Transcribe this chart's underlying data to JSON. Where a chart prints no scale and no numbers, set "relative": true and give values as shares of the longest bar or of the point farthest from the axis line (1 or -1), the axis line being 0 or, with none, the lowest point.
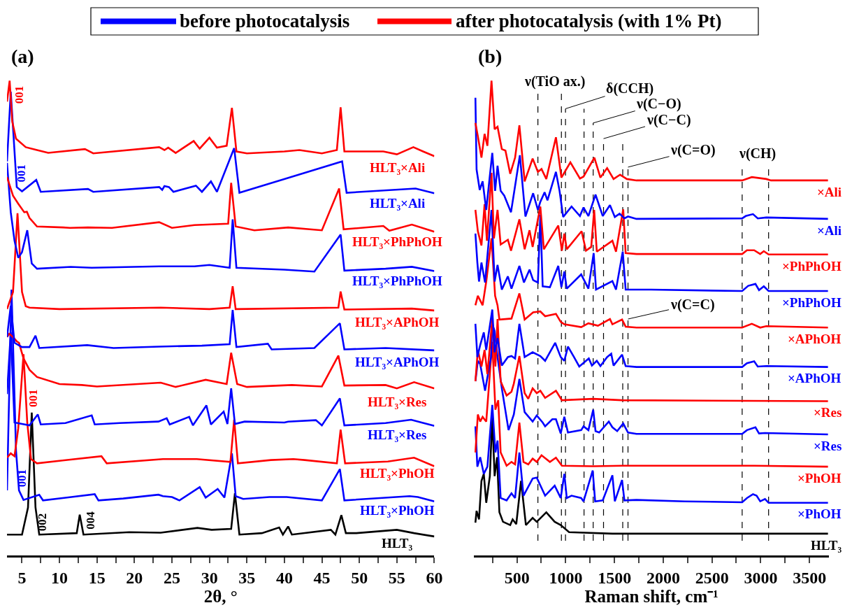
{
  "chart_data": [
    {
      "type": "line",
      "relative": true,
      "xlabel": "2θ, °",
      "xlim": [
        3,
        60
      ],
      "xticks": [
        5,
        {
          "value": 7.5,
          "label": null
        },
        10,
        {
          "value": 12.5,
          "label": null
        },
        15,
        {
          "value": 17.5,
          "label": null
        },
        20,
        {
          "value": 22.5,
          "label": null
        },
        25,
        {
          "value": 27.5,
          "label": null
        },
        30,
        {
          "value": 32.5,
          "label": null
        },
        35,
        {
          "value": 37.5,
          "label": null
        },
        40,
        {
          "value": 42.5,
          "label": null
        },
        45,
        {
          "value": 47.5,
          "label": null
        },
        50,
        {
          "value": 52.5,
          "label": null
        },
        55,
        {
          "value": 57.5,
          "label": null
        },
        60
      ],
      "series": [
        {
          "name": "HLT₃",
          "color": "#000000",
          "x": [
            3.0,
            5,
            5.8,
            6.3,
            6.8,
            7.3,
            12.3,
            12.7,
            13.2,
            19.3,
            23.5,
            28.4,
            30.3,
            32.9,
            33.4,
            34,
            37,
            39.3,
            39.8,
            40.5,
            41,
            46.2,
            46.8,
            47.6,
            48.2,
            49.6,
            55,
            57.3,
            60
          ],
          "values": [
            0.044,
            0.044,
            0.101,
            0.301,
            0.101,
            0.044,
            0.047,
            0.086,
            0.044,
            0.049,
            0.048,
            0.058,
            0.054,
            0.056,
            0.131,
            0.044,
            0.047,
            0.059,
            0.044,
            0.061,
            0.044,
            0.054,
            0.044,
            0.085,
            0.047,
            0.047,
            0.054,
            0.047,
            0.04
          ]
        },
        {
          "name": "HLT₃×PhOH",
          "color": "#0000ff",
          "x": [
            3.0,
            3.6,
            4.2,
            4.6,
            5.2,
            7.3,
            7.8,
            11,
            14.7,
            15.2,
            18.5,
            23.2,
            23.8,
            25,
            26,
            28.7,
            29.5,
            31.1,
            32,
            33.0,
            33.5,
            34.5,
            38,
            40.3,
            45,
            47.4,
            48,
            53.8,
            56.7,
            57.8,
            60
          ],
          "values": [
            0.137,
            0.56,
            0.221,
            0.137,
            0.117,
            0.128,
            0.116,
            0.122,
            0.129,
            0.116,
            0.12,
            0.128,
            0.125,
            0.123,
            0.116,
            0.144,
            0.122,
            0.14,
            0.122,
            0.215,
            0.125,
            0.119,
            0.123,
            0.123,
            0.116,
            0.182,
            0.116,
            0.122,
            0.125,
            0.123,
            0.114
          ]
        },
        {
          "name": "HLT₃×PhOH",
          "color": "#ff0000",
          "x": [
            3.0,
            3.5,
            4.0,
            4.5,
            5.2,
            5.7,
            6.2,
            7,
            10.4,
            15.6,
            16.3,
            23.8,
            28.3,
            32.8,
            33.3,
            33.8,
            38.2,
            41.2,
            42.7,
            47.0,
            47.5,
            48.1,
            53.8,
            57.3,
            60
          ],
          "values": [
            0.206,
            0.215,
            0.209,
            0.268,
            0.424,
            0.28,
            0.203,
            0.194,
            0.2,
            0.209,
            0.194,
            0.203,
            0.203,
            0.197,
            0.286,
            0.194,
            0.201,
            0.203,
            0.201,
            0.194,
            0.265,
            0.194,
            0.198,
            0.206,
            0.188
          ]
        },
        {
          "name": "HLT₃×Res",
          "color": "#0000ff",
          "x": [
            3.0,
            3.5,
            4.0,
            6,
            7.1,
            7.5,
            10.8,
            14.3,
            14.7,
            18,
            23.2,
            24.3,
            24.7,
            27.3,
            27.8,
            29.6,
            30.2,
            31.9,
            32.4,
            32.9,
            33.4,
            34.7,
            40,
            40.5,
            44.2,
            45,
            47.4,
            48,
            53.5,
            56.9,
            58.3,
            60
          ],
          "values": [
            0.34,
            0.47,
            0.28,
            0.274,
            0.297,
            0.276,
            0.279,
            0.295,
            0.276,
            0.279,
            0.282,
            0.289,
            0.276,
            0.292,
            0.274,
            0.316,
            0.276,
            0.303,
            0.277,
            0.352,
            0.277,
            0.282,
            0.28,
            0.282,
            0.285,
            0.274,
            0.331,
            0.274,
            0.279,
            0.286,
            0.28,
            0.273
          ]
        },
        {
          "name": "HLT₃×Res",
          "color": "#ff0000",
          "x": [
            3.0,
            3.3,
            3.8,
            4.3,
            4.6,
            5.2,
            6,
            7,
            10,
            13,
            15,
            23.5,
            25.5,
            29.5,
            32.3,
            32.9,
            33.7,
            35,
            41,
            45,
            47.2,
            48,
            53.5,
            55,
            57.3,
            60
          ],
          "values": [
            0.46,
            0.467,
            0.46,
            0.451,
            0.448,
            0.415,
            0.391,
            0.376,
            0.361,
            0.359,
            0.356,
            0.364,
            0.355,
            0.37,
            0.361,
            0.427,
            0.361,
            0.355,
            0.359,
            0.356,
            0.421,
            0.358,
            0.359,
            0.352,
            0.365,
            0.352
          ]
        },
        {
          "name": "HLT₃×APhOH",
          "color": "#0000ff",
          "x": [
            3.0,
            3.5,
            4.0,
            5,
            6.0,
            6.8,
            7.3,
            13.7,
            17.2,
            23.3,
            29,
            32.7,
            33.1,
            33.6,
            37.8,
            38.3,
            44,
            47.4,
            48,
            53.5,
            60
          ],
          "values": [
            0.46,
            0.526,
            0.448,
            0.439,
            0.439,
            0.463,
            0.437,
            0.443,
            0.437,
            0.44,
            0.442,
            0.445,
            0.517,
            0.439,
            0.446,
            0.434,
            0.437,
            0.489,
            0.434,
            0.437,
            0.432
          ]
        },
        {
          "name": "HLT₃×APhOH",
          "color": "#ff0000",
          "x": [
            3.0,
            3.8,
            4.4,
            5.0,
            5.5,
            6,
            10,
            23.5,
            30,
            32.7,
            33.1,
            33.5,
            47.2,
            47.5,
            48,
            57,
            60
          ],
          "values": [
            0.519,
            0.555,
            0.721,
            0.555,
            0.525,
            0.522,
            0.519,
            0.522,
            0.519,
            0.522,
            0.567,
            0.519,
            0.522,
            0.556,
            0.518,
            0.52,
            0.516
          ]
        },
        {
          "name": "HLT₃×PhPhOH",
          "color": "#0000ff",
          "x": [
            3.0,
            3.5,
            4.0,
            4.5,
            5.0,
            5.7,
            6.3,
            7,
            11.5,
            14.3,
            23.3,
            28,
            30,
            32.7,
            33.1,
            33.6,
            40,
            44,
            47.5,
            48,
            53.5,
            57,
            60
          ],
          "values": [
            0.827,
            0.723,
            0.663,
            0.627,
            0.639,
            0.685,
            0.615,
            0.604,
            0.608,
            0.606,
            0.609,
            0.609,
            0.612,
            0.606,
            0.708,
            0.606,
            0.602,
            0.598,
            0.676,
            0.6,
            0.604,
            0.608,
            0.599
          ]
        },
        {
          "name": "HLT₃×PhPhOH",
          "color": "#ff0000",
          "x": [
            3.0,
            3.8,
            4.5,
            5.3,
            5.65,
            6.0,
            7,
            10.5,
            11.4,
            13.8,
            17,
            23.3,
            25,
            28,
            32.5,
            32.9,
            33.5,
            36,
            40.5,
            45,
            47.3,
            47.9,
            53.2,
            54,
            57,
            60
          ],
          "values": [
            0.797,
            0.758,
            0.741,
            0.723,
            0.724,
            0.711,
            0.693,
            0.691,
            0.69,
            0.691,
            0.69,
            0.702,
            0.69,
            0.696,
            0.699,
            0.785,
            0.693,
            0.685,
            0.691,
            0.685,
            0.773,
            0.687,
            0.694,
            0.684,
            0.697,
            0.682
          ]
        },
        {
          "name": "HLT₃×Ali",
          "color": "#0000ff",
          "x": [
            3.0,
            3.5,
            4.3,
            5,
            6.9,
            7.5,
            13.8,
            14.5,
            23.3,
            23.7,
            24.0,
            24.6,
            25.2,
            28.2,
            29,
            30.2,
            31,
            33.3,
            34,
            47.7,
            48.3,
            57.5,
            60
          ],
          "values": [
            0.83,
            0.977,
            0.776,
            0.767,
            0.791,
            0.766,
            0.772,
            0.766,
            0.776,
            0.77,
            0.778,
            0.776,
            0.766,
            0.779,
            0.766,
            0.788,
            0.766,
            0.858,
            0.764,
            0.83,
            0.764,
            0.773,
            0.763
          ]
        },
        {
          "name": "HLT₃×Ali",
          "color": "#ff0000",
          "x": [
            3.0,
            3.35,
            3.7,
            4.2,
            5.5,
            7.0,
            8.5,
            13.4,
            14.5,
            23.3,
            24.0,
            24.5,
            25.5,
            27.9,
            28.7,
            30.0,
            31.0,
            32.3,
            33.0,
            33.6,
            35,
            40,
            42,
            45,
            47.0,
            47.5,
            48.0,
            53.2,
            55,
            57.2,
            58.5,
            60
          ],
          "values": [
            0.956,
            1.0,
            0.914,
            0.878,
            0.86,
            0.854,
            0.848,
            0.856,
            0.847,
            0.86,
            0.854,
            0.859,
            0.848,
            0.873,
            0.857,
            0.88,
            0.859,
            0.863,
            0.943,
            0.851,
            0.847,
            0.851,
            0.854,
            0.847,
            0.854,
            0.944,
            0.851,
            0.851,
            0.845,
            0.86,
            0.851,
            0.841
          ]
        }
      ],
      "annotations": [
        "(a)",
        "before photocatalysis",
        "after photocatalysis (with 1% Pt)",
        {
          "text": "001",
          "x": 3.35,
          "y": 1.0
        },
        {
          "text": "001",
          "x": 4.3,
          "y": 0.776
        },
        {
          "text": "001",
          "x": 5.2,
          "y": 0.424
        },
        {
          "text": "001",
          "x": 4.6,
          "y": 0.137
        },
        {
          "text": "002",
          "x": 6.8,
          "y": 0.101
        },
        {
          "text": "004",
          "x": 12.7,
          "y": 0.086
        }
      ]
    },
    {
      "type": "line",
      "relative": true,
      "xlabel": "Raman shift, cm⁻¹",
      "xlim": [
        60,
        3700
      ],
      "xticks": [
        {
          "value": 250,
          "label": null
        },
        500,
        {
          "value": 750,
          "label": null
        },
        1000,
        {
          "value": 1250,
          "label": null
        },
        1500,
        {
          "value": 1750,
          "label": null
        },
        2000,
        {
          "value": 2250,
          "label": null
        },
        2500,
        {
          "value": 2750,
          "label": null
        },
        3000,
        {
          "value": 3250,
          "label": null
        },
        3500
      ],
      "series": [
        {
          "name": "HLT₃",
          "color": "#000000",
          "x": [
            74,
            86,
            111,
            136,
            160,
            185,
            222,
            247,
            271,
            296,
            320,
            357,
            431,
            456,
            493,
            542,
            592,
            661,
            703,
            801,
            887,
            949,
            1035,
            1479,
            3690
          ],
          "values": [
            0.069,
            0.094,
            0.076,
            0.157,
            0.172,
            0.111,
            0.167,
            0.292,
            0.167,
            0.207,
            0.091,
            0.071,
            0.064,
            0.076,
            0.066,
            0.157,
            0.064,
            0.079,
            0.071,
            0.091,
            0.071,
            0.064,
            0.049,
            0.046,
            0.046
          ]
        },
        {
          "name": "×PhOH",
          "color": "#0000ff",
          "x": [
            74,
            94,
            123,
            160,
            197,
            247,
            279,
            301,
            333,
            394,
            444,
            481,
            525,
            567,
            661,
            703,
            789,
            887,
            949,
            986,
            1011,
            1060,
            1159,
            1183,
            1277,
            1302,
            1380,
            1479,
            1504,
            1578,
            1602,
            1726,
            2219,
            2810,
            2859,
            2921,
            2958,
            2995,
            3044,
            3081,
            3690
          ],
          "values": [
            0.272,
            0.187,
            0.207,
            0.172,
            0.187,
            0.317,
            0.217,
            0.242,
            0.121,
            0.116,
            0.131,
            0.121,
            0.217,
            0.126,
            0.162,
            0.164,
            0.126,
            0.147,
            0.121,
            0.172,
            0.121,
            0.126,
            0.121,
            0.114,
            0.179,
            0.114,
            0.116,
            0.169,
            0.114,
            0.159,
            0.116,
            0.117,
            0.114,
            0.112,
            0.121,
            0.129,
            0.126,
            0.114,
            0.119,
            0.111,
            0.111
          ]
        },
        {
          "name": "×PhOH",
          "color": "#ff0000",
          "x": [
            74,
            99,
            123,
            148,
            185,
            247,
            279,
            308,
            333,
            394,
            444,
            481,
            525,
            567,
            616,
            661,
            703,
            752,
            838,
            900,
            961,
            1282,
            1578,
            2933,
            3690
          ],
          "values": [
            0.217,
            0.297,
            0.282,
            0.292,
            0.282,
            0.45,
            0.307,
            0.327,
            0.217,
            0.189,
            0.197,
            0.192,
            0.28,
            0.197,
            0.192,
            0.204,
            0.197,
            0.211,
            0.197,
            0.206,
            0.189,
            0.188,
            0.189,
            0.189,
            0.187
          ]
        },
        {
          "name": "×Res",
          "color": "#0000ff",
          "x": [
            74,
            99,
            123,
            173,
            234,
            247,
            271,
            301,
            345,
            414,
            468,
            525,
            579,
            661,
            703,
            764,
            789,
            863,
            900,
            949,
            986,
            1023,
            1159,
            1183,
            1233,
            1282,
            1306,
            1343,
            1442,
            1479,
            1528,
            1590,
            1639,
            1726,
            2810,
            2859,
            2946,
            2983,
            3044,
            3690
          ],
          "values": [
            0.367,
            0.41,
            0.403,
            0.347,
            0.418,
            0.488,
            0.473,
            0.418,
            0.352,
            0.264,
            0.297,
            0.372,
            0.302,
            0.282,
            0.295,
            0.28,
            0.272,
            0.287,
            0.287,
            0.257,
            0.292,
            0.259,
            0.264,
            0.272,
            0.264,
            0.307,
            0.262,
            0.259,
            0.282,
            0.27,
            0.262,
            0.278,
            0.259,
            0.256,
            0.256,
            0.264,
            0.27,
            0.257,
            0.258,
            0.255
          ]
        },
        {
          "name": "×Res",
          "color": "#ff0000",
          "x": [
            74,
            99,
            136,
            168,
            197,
            247,
            279,
            301,
            333,
            394,
            444,
            468,
            525,
            579,
            616,
            661,
            703,
            740,
            789,
            900,
            961,
            1282,
            1578,
            3690
          ],
          "values": [
            0.367,
            0.433,
            0.398,
            0.433,
            0.382,
            0.498,
            0.398,
            0.498,
            0.367,
            0.337,
            0.345,
            0.362,
            0.42,
            0.342,
            0.33,
            0.352,
            0.342,
            0.347,
            0.332,
            0.347,
            0.327,
            0.33,
            0.327,
            0.325
          ]
        },
        {
          "name": "×APhOH",
          "color": "#0000ff",
          "x": [
            74,
            94,
            123,
            160,
            185,
            247,
            271,
            301,
            345,
            407,
            444,
            481,
            525,
            579,
            661,
            740,
            789,
            892,
            949,
            986,
            1023,
            1085,
            1139,
            1196,
            1237,
            1269,
            1319,
            1356,
            1425,
            1467,
            1491,
            1578,
            1615,
            1726,
            2810,
            2859,
            2933,
            2970,
            3057,
            3690
          ],
          "values": [
            0.488,
            0.418,
            0.443,
            0.47,
            0.433,
            0.518,
            0.428,
            0.458,
            0.4,
            0.418,
            0.42,
            0.415,
            0.488,
            0.418,
            0.428,
            0.42,
            0.41,
            0.448,
            0.418,
            0.41,
            0.44,
            0.418,
            0.398,
            0.408,
            0.415,
            0.4,
            0.41,
            0.399,
            0.418,
            0.425,
            0.4,
            0.423,
            0.399,
            0.397,
            0.397,
            0.405,
            0.409,
            0.398,
            0.399,
            0.397
          ]
        },
        {
          "name": "×APhOH",
          "color": "#ff0000",
          "x": [
            74,
            99,
            148,
            185,
            239,
            276,
            301,
            320,
            444,
            525,
            579,
            666,
            740,
            789,
            900,
            949,
            986,
            1159,
            1233,
            1331,
            1454,
            1479,
            1578,
            1615,
            1726,
            2810,
            2909,
            2995,
            3057,
            3690
          ],
          "values": [
            0.527,
            0.547,
            0.527,
            0.577,
            0.668,
            0.547,
            0.527,
            0.497,
            0.499,
            0.552,
            0.497,
            0.512,
            0.514,
            0.504,
            0.509,
            0.492,
            0.487,
            0.481,
            0.489,
            0.484,
            0.498,
            0.487,
            0.497,
            0.482,
            0.48,
            0.48,
            0.488,
            0.48,
            0.483,
            0.48
          ]
        },
        {
          "name": "×PhPhOH",
          "color": "#0000ff",
          "x": [
            74,
            94,
            111,
            136,
            173,
            239,
            271,
            301,
            345,
            407,
            444,
            525,
            572,
            629,
            666,
            715,
            740,
            764,
            838,
            924,
            956,
            986,
            1011,
            1159,
            1233,
            1287,
            1311,
            1479,
            1516,
            1585,
            1615,
            1873,
            2810,
            2872,
            2946,
            2983,
            3032,
            3081,
            3690
          ],
          "values": [
            0.678,
            0.617,
            0.577,
            0.617,
            0.575,
            0.728,
            0.577,
            0.612,
            0.56,
            0.588,
            0.562,
            0.61,
            0.575,
            0.602,
            0.58,
            0.575,
            0.718,
            0.567,
            0.565,
            0.61,
            0.565,
            0.598,
            0.562,
            0.592,
            0.562,
            0.637,
            0.56,
            0.578,
            0.56,
            0.64,
            0.56,
            0.56,
            0.557,
            0.568,
            0.572,
            0.559,
            0.567,
            0.557,
            0.557
          ]
        },
        {
          "name": "×PhPhOH",
          "color": "#ff0000",
          "x": [
            74,
            99,
            136,
            168,
            192,
            239,
            264,
            301,
            333,
            407,
            439,
            525,
            579,
            629,
            661,
            740,
            776,
            924,
            961,
            986,
            1011,
            1163,
            1208,
            1262,
            1292,
            1319,
            1479,
            1516,
            1590,
            1615,
            1726,
            2810,
            2859,
            2933,
            2995,
            3032,
            3081,
            3690
          ],
          "values": [
            0.728,
            0.683,
            0.653,
            0.74,
            0.663,
            0.806,
            0.668,
            0.728,
            0.655,
            0.665,
            0.642,
            0.708,
            0.645,
            0.685,
            0.65,
            0.735,
            0.645,
            0.695,
            0.642,
            0.678,
            0.645,
            0.683,
            0.642,
            0.65,
            0.728,
            0.64,
            0.663,
            0.64,
            0.729,
            0.637,
            0.635,
            0.635,
            0.643,
            0.643,
            0.635,
            0.641,
            0.634,
            0.634
          ]
        },
        {
          "name": "×Ali",
          "color": "#0000ff",
          "x": [
            74,
            86,
            118,
            148,
            185,
            247,
            276,
            301,
            333,
            370,
            439,
            530,
            587,
            666,
            715,
            740,
            784,
            813,
            900,
            937,
            974,
            1060,
            1146,
            1183,
            1233,
            1306,
            1380,
            1454,
            1504,
            1553,
            1602,
            1639,
            1726,
            2810,
            2847,
            2921,
            2970,
            3057,
            3690
          ],
          "values": [
            0.964,
            0.813,
            0.77,
            0.788,
            0.728,
            0.848,
            0.768,
            0.821,
            0.768,
            0.758,
            0.723,
            0.843,
            0.714,
            0.763,
            0.728,
            0.745,
            0.765,
            0.748,
            0.808,
            0.768,
            0.713,
            0.735,
            0.715,
            0.733,
            0.715,
            0.76,
            0.715,
            0.738,
            0.713,
            0.72,
            0.71,
            0.714,
            0.709,
            0.71,
            0.715,
            0.719,
            0.71,
            0.712,
            0.709
          ]
        },
        {
          "name": "×Ali",
          "color": "#ff0000",
          "x": [
            74,
            99,
            136,
            168,
            197,
            239,
            271,
            301,
            345,
            382,
            431,
            481,
            525,
            579,
            661,
            715,
            752,
            801,
            900,
            956,
            1048,
            1146,
            1183,
            1294,
            1356,
            1425,
            1491,
            1558,
            1627,
            1726,
            2810,
            2909,
            3057,
            3106,
            3690
          ],
          "values": [
            0.911,
            0.883,
            0.838,
            0.888,
            0.863,
            1.0,
            0.898,
            0.903,
            0.856,
            0.853,
            0.804,
            0.838,
            0.906,
            0.788,
            0.836,
            0.808,
            0.814,
            0.793,
            0.881,
            0.796,
            0.828,
            0.794,
            0.798,
            0.838,
            0.796,
            0.816,
            0.793,
            0.802,
            0.793,
            0.79,
            0.79,
            0.797,
            0.793,
            0.79,
            0.79
          ]
        }
      ],
      "ref_lines": [
        {
          "axis": "x",
          "value": 715,
          "color": "#000000",
          "line_style": "dashed"
        },
        {
          "axis": "x",
          "value": 956,
          "color": "#000000",
          "line_style": "dashed"
        },
        {
          "axis": "x",
          "value": 998,
          "color": "#000000",
          "line_style": "dashed"
        },
        {
          "axis": "x",
          "value": 1188,
          "color": "#000000",
          "line_style": "dashed"
        },
        {
          "axis": "x",
          "value": 1282,
          "color": "#000000",
          "line_style": "dashed"
        },
        {
          "axis": "x",
          "value": 1388,
          "color": "#000000",
          "line_style": "dashed"
        },
        {
          "axis": "x",
          "value": 1585,
          "color": "#000000",
          "line_style": "dashed"
        },
        {
          "axis": "x",
          "value": 1639,
          "color": "#000000",
          "line_style": "dashed"
        },
        {
          "axis": "x",
          "value": 2810,
          "color": "#000000",
          "line_style": "dashed"
        },
        {
          "axis": "x",
          "value": 3081,
          "color": "#000000",
          "line_style": "dashed"
        }
      ],
      "annotations": [
        "(b)",
        {
          "text": "ν(TiO ax.)",
          "x": 715,
          "y": 0.974
        },
        {
          "text": "δ(CCH)",
          "x": 998,
          "y": 0.941
        },
        {
          "text": "ν(C−O)",
          "x": 1282,
          "y": 0.911
        },
        {
          "text": "ν(C−C)",
          "x": 1388,
          "y": 0.878
        },
        {
          "text": "ν(C=O)",
          "x": 1639,
          "y": 0.818
        },
        {
          "text": "ν(CH)",
          "x": 2810,
          "y": 0.823
        },
        {
          "text": "ν(C=C)",
          "x": 1639,
          "y": 0.498
        }
      ]
    }
  ]
}
